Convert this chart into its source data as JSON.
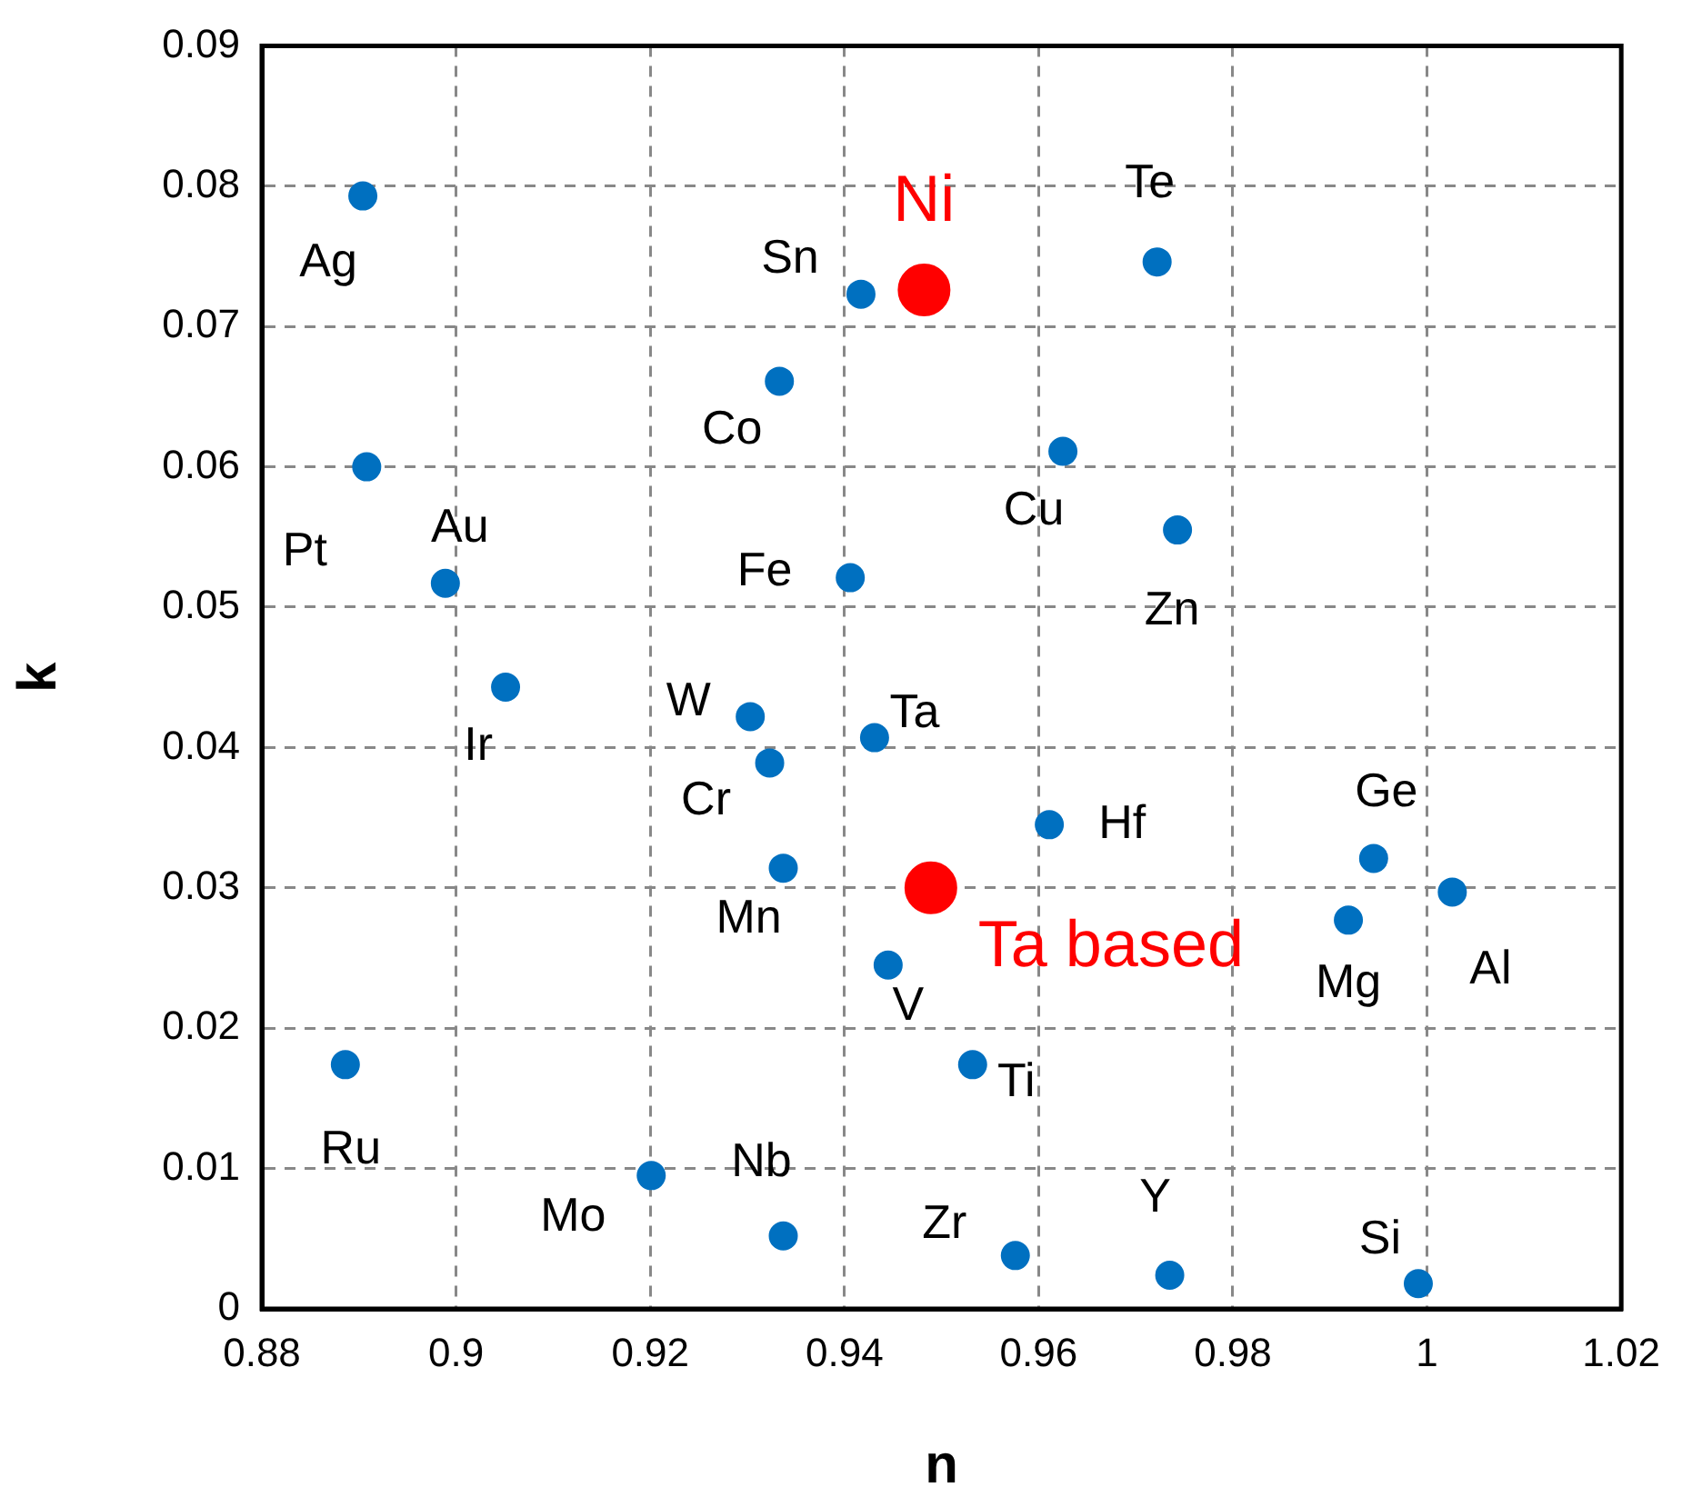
{
  "chart_data": {
    "type": "scatter",
    "xlabel": "n",
    "ylabel": "k",
    "xlim": [
      0.88,
      1.02
    ],
    "xticks": [
      0.88,
      0.9,
      0.92,
      0.94,
      0.96,
      0.98,
      1,
      1.02
    ],
    "ylim": [
      0,
      0.09
    ],
    "yticks": [
      0,
      0.01,
      0.02,
      0.03,
      0.04,
      0.05,
      0.06,
      0.07,
      0.08,
      0.09
    ],
    "grid": true,
    "legend": false,
    "marker": "circle",
    "series": [
      {
        "color": "#0070c0",
        "x": [
          0.8904,
          0.9417,
          0.9333,
          0.8908,
          0.8989,
          0.9406,
          0.9051,
          0.9303,
          0.9431,
          0.9323,
          0.9722,
          0.9625,
          0.9743,
          0.9611,
          0.9337,
          0.9445,
          0.8886,
          0.9201,
          0.9337,
          0.9945,
          1.0026,
          0.9919,
          0.9532,
          0.9576,
          0.9735,
          0.9991
        ],
        "values": [
          0.0793,
          0.0723,
          0.0661,
          0.06,
          0.0517,
          0.0521,
          0.0443,
          0.0422,
          0.0407,
          0.0389,
          0.0746,
          0.0611,
          0.0555,
          0.0345,
          0.0314,
          0.0245,
          0.0174,
          0.0095,
          0.0052,
          0.0321,
          0.0297,
          0.0277,
          0.0174,
          0.0038,
          0.0024,
          0.0018
        ]
      },
      {
        "color": "#ff0000",
        "x": [
          0.9482,
          0.9489
        ],
        "values": [
          0.0726,
          0.03
        ]
      }
    ],
    "annotations": [
      {
        "text": "Ag",
        "x": 0.8904,
        "y": 0.0793
      },
      {
        "text": "Sn",
        "x": 0.9417,
        "y": 0.0723
      },
      {
        "text": "Co",
        "x": 0.9333,
        "y": 0.0661
      },
      {
        "text": "Pt",
        "x": 0.8908,
        "y": 0.06
      },
      {
        "text": "Au",
        "x": 0.8989,
        "y": 0.0517
      },
      {
        "text": "Fe",
        "x": 0.9406,
        "y": 0.0521
      },
      {
        "text": "Ir",
        "x": 0.9051,
        "y": 0.0443
      },
      {
        "text": "W",
        "x": 0.9303,
        "y": 0.0422
      },
      {
        "text": "Ta",
        "x": 0.9431,
        "y": 0.0407
      },
      {
        "text": "Cr",
        "x": 0.9323,
        "y": 0.0389
      },
      {
        "text": "Te",
        "x": 0.9722,
        "y": 0.0746
      },
      {
        "text": "Cu",
        "x": 0.9625,
        "y": 0.0611
      },
      {
        "text": "Zn",
        "x": 0.9743,
        "y": 0.0555
      },
      {
        "text": "Hf",
        "x": 0.9611,
        "y": 0.0345
      },
      {
        "text": "Mn",
        "x": 0.9337,
        "y": 0.0314
      },
      {
        "text": "V",
        "x": 0.9445,
        "y": 0.0245
      },
      {
        "text": "Ru",
        "x": 0.8886,
        "y": 0.0174
      },
      {
        "text": "Mo",
        "x": 0.9201,
        "y": 0.0095
      },
      {
        "text": "Nb",
        "x": 0.9337,
        "y": 0.0052
      },
      {
        "text": "Ge",
        "x": 0.9945,
        "y": 0.0321
      },
      {
        "text": "Al",
        "x": 1.0026,
        "y": 0.0297
      },
      {
        "text": "Mg",
        "x": 0.9919,
        "y": 0.0277
      },
      {
        "text": "Ti",
        "x": 0.9532,
        "y": 0.0174
      },
      {
        "text": "Zr",
        "x": 0.9576,
        "y": 0.0038
      },
      {
        "text": "Y",
        "x": 0.9735,
        "y": 0.0024
      },
      {
        "text": "Si",
        "x": 0.9991,
        "y": 0.0018
      },
      {
        "text": "Ni",
        "x": 0.9482,
        "y": 0.0726
      },
      {
        "text": "Ta based",
        "x": 0.9489,
        "y": 0.03
      }
    ]
  }
}
